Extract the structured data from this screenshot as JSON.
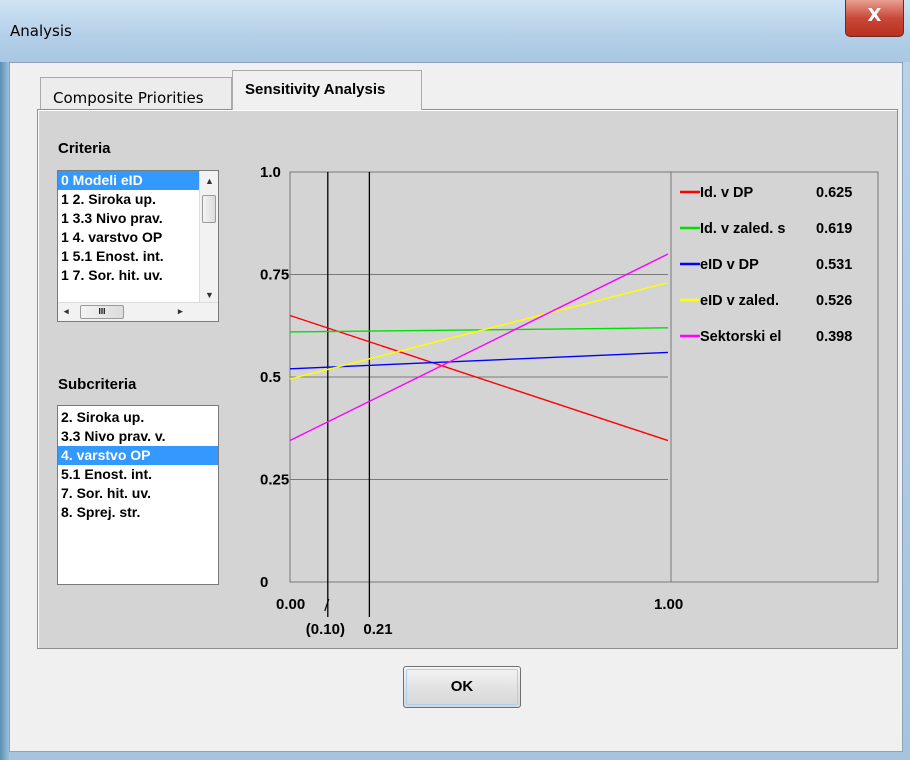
{
  "window": {
    "title": "Analysis",
    "close_glyph": "X"
  },
  "tabs": [
    {
      "label": "Composite Priorities",
      "active": false
    },
    {
      "label": "Sensitivity Analysis",
      "active": true
    }
  ],
  "criteria": {
    "label": "Criteria",
    "items": [
      "0 Modeli eID",
      "1 2. Siroka up.",
      "1 3.3 Nivo prav.",
      "1 4. varstvo OP",
      "1 5.1 Enost. int.",
      "1 7. Sor. hit. uv."
    ],
    "selected_index": 0,
    "scroll_left_glyph": "◂",
    "scroll_right_glyph": "▸",
    "scroll_up_glyph": "▲",
    "scroll_down_glyph": "▼",
    "grip_glyph": "III"
  },
  "subcriteria": {
    "label": "Subcriteria",
    "items": [
      "2. Siroka up.",
      "3.3 Nivo prav. v.",
      "4. varstvo OP",
      "5.1 Enost. int.",
      "7. Sor. hit. uv.",
      "8. Sprej. str."
    ],
    "selected_index": 2
  },
  "chart_data": {
    "type": "line",
    "x": [
      0,
      1
    ],
    "xlim": [
      0,
      1
    ],
    "ylim": [
      0,
      1
    ],
    "y_ticks": [
      0,
      0.25,
      0.5,
      0.75,
      1.0
    ],
    "y_tick_labels": [
      "0",
      "0.25",
      "0.5",
      "0.75",
      "1.0"
    ],
    "x_tick_labels": {
      "left": "0.00",
      "right": "1.00"
    },
    "marker_lines": [
      {
        "x": 0.1,
        "label": "(0.10)"
      },
      {
        "x": 0.21,
        "label": "0.21"
      }
    ],
    "grid": true,
    "legend_position": "right",
    "series": [
      {
        "name": "Id. v DP",
        "value_label": "0.625",
        "color": "#ff0000",
        "values": [
          0.65,
          0.345
        ]
      },
      {
        "name": "Id. v zaled. s",
        "value_label": "0.619",
        "color": "#00e000",
        "values": [
          0.61,
          0.62
        ]
      },
      {
        "name": "eID v DP",
        "value_label": "0.531",
        "color": "#0000ff",
        "values": [
          0.52,
          0.56
        ]
      },
      {
        "name": "eID v zaled.",
        "value_label": "0.526",
        "color": "#ffff00",
        "values": [
          0.495,
          0.73
        ]
      },
      {
        "name": "Sektorski el",
        "value_label": "0.398",
        "color": "#ff00ff",
        "values": [
          0.345,
          0.8
        ]
      }
    ]
  },
  "ok_button": {
    "label": "OK"
  }
}
